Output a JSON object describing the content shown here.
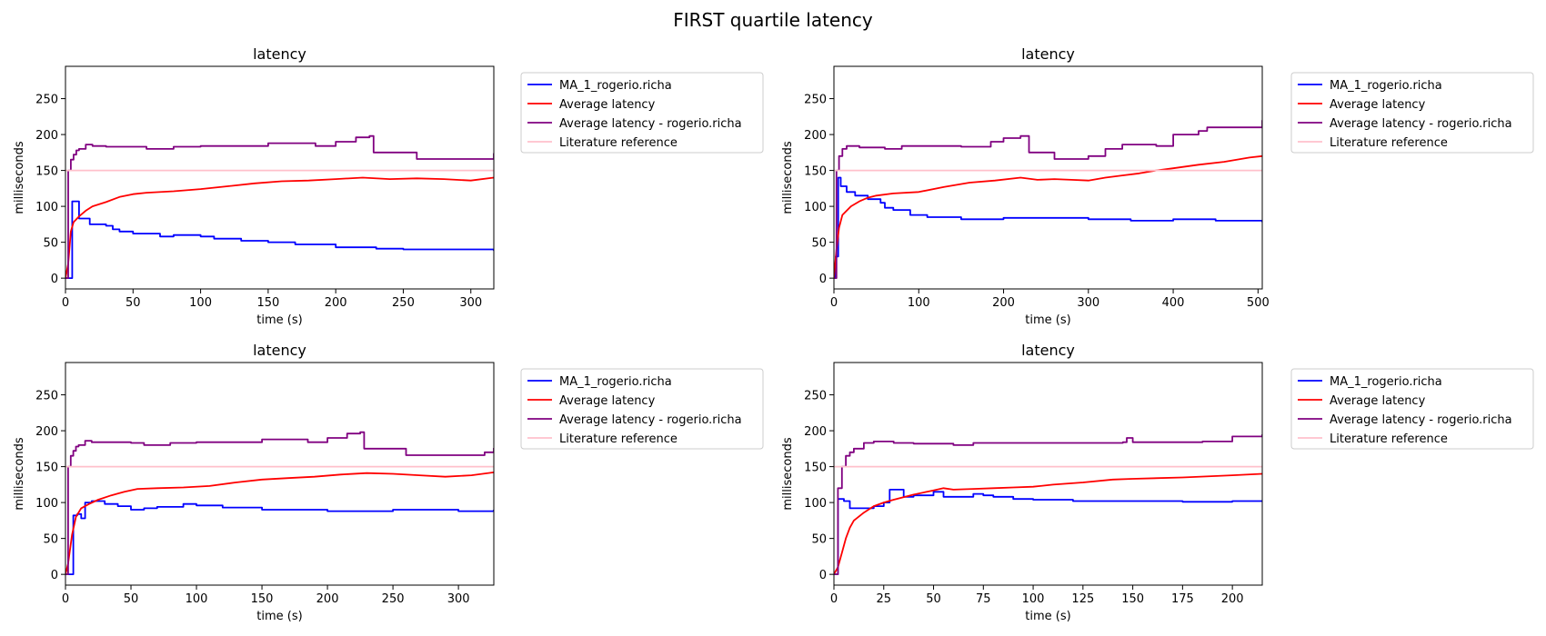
{
  "figure": {
    "title": "FIRST quartile latency"
  },
  "colors": {
    "ma": "#0000ff",
    "avg": "#ff0000",
    "user_avg": "#800080",
    "reference": "#ffc0cb"
  },
  "chart_data": [
    {
      "type": "line",
      "title": "latency",
      "xlabel": "time (s)",
      "ylabel": "milliseconds",
      "xlim": [
        0,
        317
      ],
      "ylim": [
        -15,
        295
      ],
      "xticks": [
        0,
        50,
        100,
        150,
        200,
        250,
        300
      ],
      "yticks": [
        0,
        50,
        100,
        150,
        200,
        250
      ],
      "legend_position": "outside-right",
      "series": [
        {
          "name": "MA_1_rogerio.richa",
          "color": "#0000ff",
          "step": true,
          "x": [
            0,
            3,
            5,
            10,
            12,
            18,
            30,
            35,
            40,
            50,
            70,
            80,
            100,
            110,
            130,
            150,
            170,
            200,
            230,
            250,
            317
          ],
          "y": [
            0,
            0,
            107,
            83,
            83,
            75,
            73,
            68,
            65,
            62,
            58,
            60,
            58,
            55,
            52,
            50,
            47,
            43,
            41,
            40,
            38
          ]
        },
        {
          "name": "Average latency",
          "color": "#ff0000",
          "step": false,
          "x": [
            0,
            2,
            4,
            6,
            10,
            15,
            20,
            30,
            40,
            50,
            60,
            80,
            100,
            120,
            140,
            160,
            180,
            200,
            220,
            240,
            260,
            280,
            300,
            317
          ],
          "y": [
            0,
            20,
            65,
            78,
            86,
            94,
            100,
            106,
            113,
            117,
            119,
            121,
            124,
            128,
            132,
            135,
            136,
            138,
            140,
            138,
            139,
            138,
            136,
            140
          ]
        },
        {
          "name": "Average latency - rogerio.richa",
          "color": "#800080",
          "step": true,
          "x": [
            0,
            2,
            4,
            6,
            8,
            10,
            15,
            20,
            30,
            50,
            60,
            80,
            100,
            145,
            150,
            185,
            200,
            215,
            225,
            228,
            260,
            300,
            315,
            317
          ],
          "y": [
            0,
            150,
            165,
            172,
            178,
            180,
            186,
            184,
            183,
            183,
            180,
            183,
            184,
            184,
            188,
            184,
            190,
            196,
            198,
            175,
            166,
            166,
            166,
            174
          ]
        },
        {
          "name": "Literature reference",
          "color": "#ffc0cb",
          "step": false,
          "x": [
            0,
            317
          ],
          "y": [
            150,
            150
          ]
        }
      ]
    },
    {
      "type": "line",
      "title": "latency",
      "xlabel": "time (s)",
      "ylabel": "milliseconds",
      "xlim": [
        0,
        505
      ],
      "ylim": [
        -15,
        295
      ],
      "xticks": [
        0,
        100,
        200,
        300,
        400,
        500
      ],
      "yticks": [
        0,
        50,
        100,
        150,
        200,
        250
      ],
      "legend_position": "outside-right",
      "series": [
        {
          "name": "MA_1_rogerio.richa",
          "color": "#0000ff",
          "step": true,
          "x": [
            0,
            2,
            5,
            8,
            15,
            25,
            40,
            55,
            60,
            70,
            90,
            110,
            150,
            200,
            250,
            300,
            350,
            400,
            450,
            505
          ],
          "y": [
            0,
            30,
            140,
            128,
            120,
            115,
            110,
            105,
            98,
            95,
            88,
            85,
            82,
            84,
            84,
            82,
            80,
            82,
            80,
            78
          ]
        },
        {
          "name": "Average latency",
          "color": "#ff0000",
          "step": false,
          "x": [
            0,
            3,
            6,
            10,
            20,
            30,
            40,
            50,
            70,
            100,
            130,
            160,
            190,
            220,
            240,
            260,
            280,
            300,
            320,
            340,
            360,
            380,
            400,
            430,
            460,
            490,
            505
          ],
          "y": [
            0,
            40,
            70,
            88,
            100,
            107,
            112,
            115,
            118,
            120,
            127,
            133,
            136,
            140,
            137,
            138,
            137,
            136,
            140,
            143,
            146,
            150,
            153,
            158,
            162,
            168,
            170
          ]
        },
        {
          "name": "Average latency - rogerio.richa",
          "color": "#800080",
          "step": true,
          "x": [
            0,
            3,
            6,
            10,
            15,
            30,
            60,
            80,
            150,
            185,
            200,
            220,
            230,
            260,
            300,
            320,
            340,
            380,
            400,
            430,
            440,
            505
          ],
          "y": [
            0,
            150,
            170,
            180,
            184,
            182,
            180,
            184,
            183,
            190,
            195,
            198,
            175,
            166,
            170,
            180,
            186,
            184,
            200,
            205,
            210,
            220
          ]
        },
        {
          "name": "Literature reference",
          "color": "#ffc0cb",
          "step": false,
          "x": [
            0,
            505
          ],
          "y": [
            150,
            150
          ]
        }
      ]
    },
    {
      "type": "line",
      "title": "latency",
      "xlabel": "time (s)",
      "ylabel": "milliseconds",
      "xlim": [
        0,
        327
      ],
      "ylim": [
        -15,
        295
      ],
      "xticks": [
        0,
        50,
        100,
        150,
        200,
        250,
        300
      ],
      "yticks": [
        0,
        50,
        100,
        150,
        200,
        250
      ],
      "legend_position": "outside-right",
      "series": [
        {
          "name": "MA_1_rogerio.richa",
          "color": "#0000ff",
          "step": true,
          "x": [
            0,
            3,
            6,
            9,
            12,
            15,
            20,
            30,
            40,
            50,
            60,
            70,
            90,
            100,
            120,
            150,
            200,
            250,
            300,
            327
          ],
          "y": [
            0,
            0,
            82,
            84,
            78,
            100,
            102,
            98,
            95,
            90,
            92,
            94,
            98,
            96,
            93,
            90,
            88,
            90,
            88,
            90
          ]
        },
        {
          "name": "Average latency",
          "color": "#ff0000",
          "step": false,
          "x": [
            0,
            2,
            5,
            8,
            12,
            18,
            25,
            35,
            45,
            55,
            70,
            90,
            110,
            130,
            150,
            170,
            190,
            210,
            230,
            250,
            270,
            290,
            310,
            327
          ],
          "y": [
            0,
            15,
            55,
            80,
            92,
            98,
            104,
            110,
            115,
            119,
            120,
            121,
            123,
            128,
            132,
            134,
            136,
            139,
            141,
            140,
            138,
            136,
            138,
            142
          ]
        },
        {
          "name": "Average latency - rogerio.richa",
          "color": "#800080",
          "step": true,
          "x": [
            0,
            2,
            4,
            6,
            8,
            10,
            15,
            20,
            50,
            60,
            80,
            100,
            145,
            150,
            185,
            200,
            215,
            225,
            228,
            260,
            300,
            320,
            327
          ],
          "y": [
            0,
            150,
            165,
            172,
            178,
            180,
            186,
            184,
            183,
            180,
            183,
            184,
            184,
            188,
            184,
            190,
            196,
            198,
            175,
            166,
            166,
            170,
            176
          ]
        },
        {
          "name": "Literature reference",
          "color": "#ffc0cb",
          "step": false,
          "x": [
            0,
            327
          ],
          "y": [
            150,
            150
          ]
        }
      ]
    },
    {
      "type": "line",
      "title": "latency",
      "xlabel": "time (s)",
      "ylabel": "milliseconds",
      "xlim": [
        0,
        215
      ],
      "ylim": [
        -15,
        295
      ],
      "xticks": [
        0,
        25,
        50,
        75,
        100,
        125,
        150,
        175,
        200
      ],
      "yticks": [
        0,
        50,
        100,
        150,
        200,
        250
      ],
      "legend_position": "outside-right",
      "series": [
        {
          "name": "MA_1_rogerio.richa",
          "color": "#0000ff",
          "step": true,
          "x": [
            0,
            2,
            5,
            8,
            15,
            20,
            25,
            28,
            35,
            40,
            50,
            55,
            70,
            75,
            80,
            90,
            100,
            120,
            150,
            175,
            200,
            215
          ],
          "y": [
            0,
            105,
            102,
            92,
            92,
            95,
            100,
            118,
            108,
            110,
            115,
            108,
            112,
            110,
            108,
            105,
            104,
            102,
            102,
            101,
            102,
            103
          ]
        },
        {
          "name": "Average latency",
          "color": "#ff0000",
          "step": false,
          "x": [
            0,
            2,
            4,
            6,
            8,
            10,
            15,
            20,
            25,
            30,
            40,
            50,
            55,
            60,
            70,
            80,
            90,
            100,
            110,
            125,
            140,
            150,
            175,
            200,
            215
          ],
          "y": [
            0,
            10,
            30,
            50,
            65,
            75,
            86,
            95,
            100,
            104,
            111,
            117,
            120,
            118,
            119,
            120,
            121,
            122,
            125,
            128,
            132,
            133,
            135,
            138,
            140
          ]
        },
        {
          "name": "Average latency - rogerio.richa",
          "color": "#800080",
          "step": true,
          "x": [
            0,
            2,
            4,
            6,
            8,
            10,
            15,
            20,
            30,
            40,
            60,
            70,
            100,
            145,
            147,
            150,
            185,
            200,
            215
          ],
          "y": [
            0,
            120,
            150,
            165,
            170,
            175,
            183,
            185,
            183,
            182,
            180,
            183,
            183,
            184,
            190,
            184,
            185,
            192,
            195
          ]
        },
        {
          "name": "Literature reference",
          "color": "#ffc0cb",
          "step": false,
          "x": [
            0,
            215
          ],
          "y": [
            150,
            150
          ]
        }
      ]
    }
  ]
}
